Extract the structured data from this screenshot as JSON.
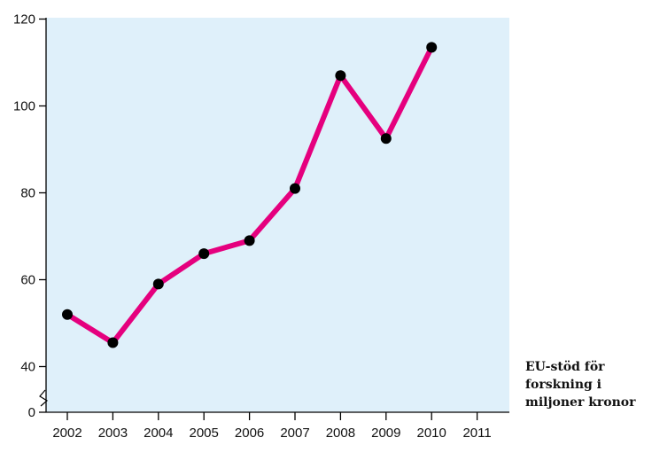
{
  "chart_data": {
    "type": "line",
    "title": "",
    "caption_lines": [
      "EU-stöd för",
      "forskning i",
      "miljoner kronor"
    ],
    "x": [
      "2002",
      "2003",
      "2004",
      "2005",
      "2006",
      "2007",
      "2008",
      "2009",
      "2010"
    ],
    "x_ticks": [
      "2002",
      "2003",
      "2004",
      "2005",
      "2006",
      "2007",
      "2008",
      "2009",
      "2010",
      "2011"
    ],
    "y_ticks": [
      0,
      40,
      60,
      80,
      100,
      120
    ],
    "ylim": [
      0,
      120
    ],
    "y_axis_break": true,
    "grid": false,
    "series": [
      {
        "values": [
          52,
          45.5,
          59,
          66,
          69,
          81,
          107,
          92.5,
          113.5
        ]
      }
    ],
    "colors": {
      "line": "#e5007e",
      "marker": "#000000",
      "plot_background": "#dff0fa",
      "axis": "#000000"
    }
  }
}
